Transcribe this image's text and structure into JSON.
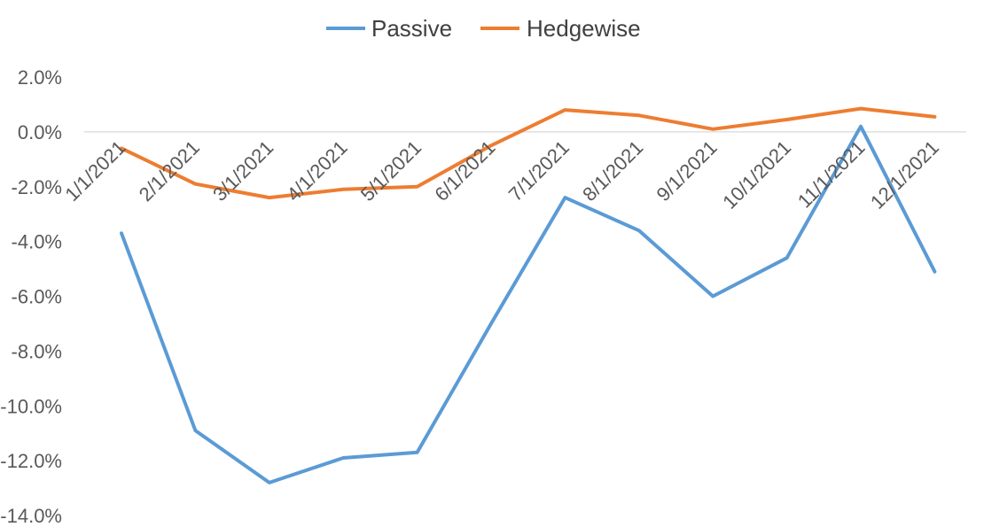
{
  "chart_data": {
    "type": "line",
    "categories": [
      "1/1/2021",
      "2/1/2021",
      "3/1/2021",
      "4/1/2021",
      "5/1/2021",
      "6/1/2021",
      "7/1/2021",
      "8/1/2021",
      "9/1/2021",
      "10/1/2021",
      "11/1/2021",
      "12/1/2021"
    ],
    "series": [
      {
        "name": "Passive",
        "color": "#5b9bd5",
        "values": [
          -3.7,
          -10.9,
          -12.8,
          -11.9,
          -11.7,
          -7.0,
          -2.4,
          -3.6,
          -6.0,
          -4.6,
          0.2,
          -5.1
        ]
      },
      {
        "name": "Hedgewise",
        "color": "#ed7d31",
        "values": [
          -0.6,
          -1.9,
          -2.4,
          -2.1,
          -2.0,
          -0.5,
          0.8,
          0.6,
          0.1,
          0.45,
          0.85,
          0.55
        ]
      }
    ],
    "y_ticks": [
      "2.0%",
      "0.0%",
      "-2.0%",
      "-4.0%",
      "-6.0%",
      "-8.0%",
      "-10.0%",
      "-12.0%",
      "-14.0%"
    ],
    "ylim": [
      -14,
      2
    ],
    "grid": false,
    "legend_position": "top-center",
    "title": "",
    "xlabel": "",
    "ylabel": ""
  }
}
